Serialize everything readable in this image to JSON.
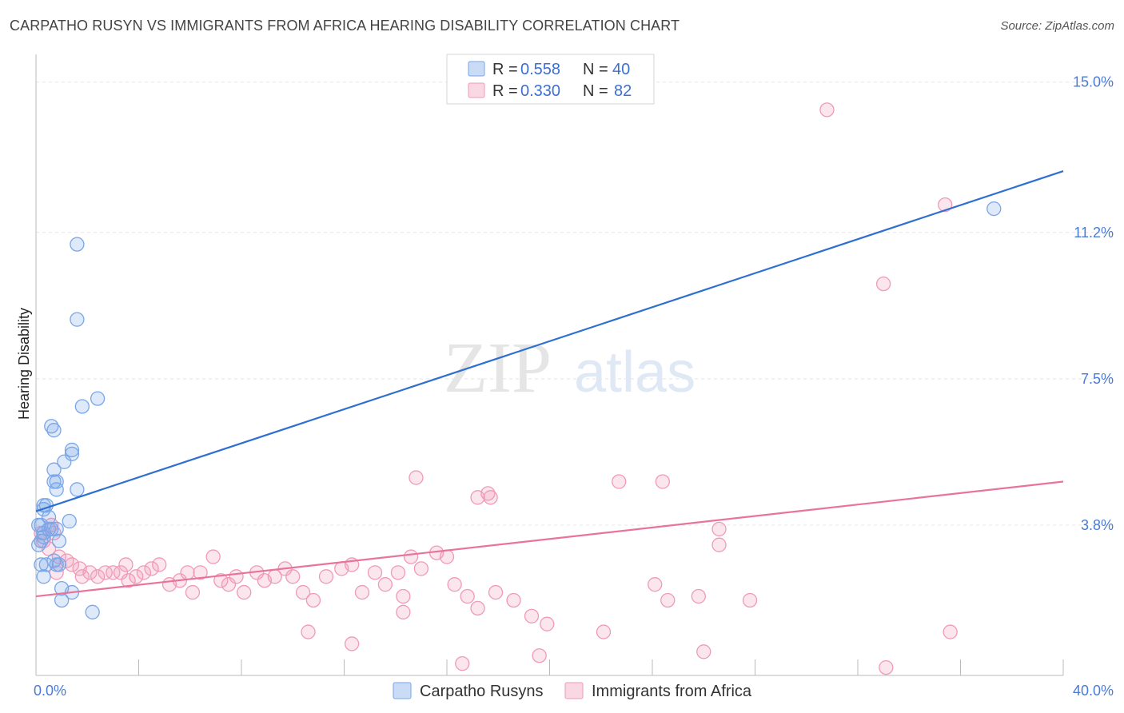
{
  "title": "CARPATHO RUSYN VS IMMIGRANTS FROM AFRICA HEARING DISABILITY CORRELATION CHART",
  "source": "Source: ZipAtlas.com",
  "watermark": {
    "zip": "ZIP",
    "atlas": "atlas"
  },
  "colors": {
    "blue": "#7aa6e8",
    "blue_fill": "rgba(122,166,232,0.25)",
    "blue_line": "#2f6fd0",
    "pink": "#f09ab8",
    "pink_fill": "rgba(240,154,184,0.25)",
    "pink_line": "#e8739c",
    "grid": "#e4e4e4",
    "axis": "#bbbbbb"
  },
  "legend": {
    "rows": [
      {
        "r_label": "R =",
        "r_value": "0.558",
        "n_label": "N =",
        "n_value": "40"
      },
      {
        "r_label": "R =",
        "r_value": "0.330",
        "n_label": "N =",
        "n_value": "82"
      }
    ]
  },
  "chart_data": {
    "type": "scatter",
    "title": "CARPATHO RUSYN VS IMMIGRANTS FROM AFRICA HEARING DISABILITY CORRELATION CHART",
    "xlabel": "",
    "ylabel": "Hearing Disability",
    "xlim": [
      0,
      40
    ],
    "ylim": [
      0,
      15.5
    ],
    "x_tick_labels": [
      "0.0%",
      "40.0%"
    ],
    "y_ticks": [
      3.8,
      7.5,
      11.2,
      15.0
    ],
    "y_tick_labels": [
      "3.8%",
      "7.5%",
      "11.2%",
      "15.0%"
    ],
    "grid": true,
    "legend_position": "top-center",
    "series": [
      {
        "name": "Carpatho Rusyns",
        "color": "#7aa6e8",
        "trend": {
          "x": [
            0,
            40
          ],
          "y": [
            4.15,
            12.75
          ]
        },
        "points": [
          [
            1.6,
            10.9
          ],
          [
            1.6,
            9.0
          ],
          [
            2.4,
            7.0
          ],
          [
            1.8,
            6.8
          ],
          [
            0.6,
            6.3
          ],
          [
            0.7,
            6.2
          ],
          [
            1.4,
            5.7
          ],
          [
            1.4,
            5.6
          ],
          [
            1.1,
            5.4
          ],
          [
            0.7,
            5.2
          ],
          [
            0.7,
            4.9
          ],
          [
            0.8,
            4.9
          ],
          [
            1.6,
            4.7
          ],
          [
            0.8,
            4.7
          ],
          [
            0.3,
            4.3
          ],
          [
            0.4,
            4.3
          ],
          [
            0.3,
            4.2
          ],
          [
            0.5,
            4.0
          ],
          [
            1.3,
            3.9
          ],
          [
            0.1,
            3.8
          ],
          [
            0.2,
            3.8
          ],
          [
            0.5,
            3.7
          ],
          [
            0.6,
            3.7
          ],
          [
            0.8,
            3.7
          ],
          [
            0.3,
            3.6
          ],
          [
            0.2,
            3.4
          ],
          [
            0.9,
            3.4
          ],
          [
            0.1,
            3.3
          ],
          [
            0.4,
            2.8
          ],
          [
            0.8,
            2.8
          ],
          [
            0.7,
            2.9
          ],
          [
            0.9,
            2.8
          ],
          [
            0.3,
            2.5
          ],
          [
            0.2,
            2.8
          ],
          [
            1.0,
            2.2
          ],
          [
            1.4,
            2.1
          ],
          [
            1.0,
            1.9
          ],
          [
            2.2,
            1.6
          ],
          [
            0.3,
            3.5
          ],
          [
            37.3,
            11.8
          ]
        ]
      },
      {
        "name": "Immigrants from Africa",
        "color": "#f09ab8",
        "trend": {
          "x": [
            0,
            40
          ],
          "y": [
            2.0,
            4.9
          ]
        },
        "points": [
          [
            30.8,
            14.3
          ],
          [
            35.4,
            11.9
          ],
          [
            33.0,
            9.9
          ],
          [
            14.8,
            5.0
          ],
          [
            22.7,
            4.9
          ],
          [
            24.4,
            4.9
          ],
          [
            17.2,
            4.5
          ],
          [
            17.6,
            4.6
          ],
          [
            17.7,
            4.5
          ],
          [
            0.2,
            3.6
          ],
          [
            0.6,
            3.8
          ],
          [
            0.3,
            3.4
          ],
          [
            0.5,
            3.2
          ],
          [
            0.7,
            3.6
          ],
          [
            0.9,
            3.0
          ],
          [
            1.2,
            2.9
          ],
          [
            1.4,
            2.8
          ],
          [
            0.8,
            2.6
          ],
          [
            1.7,
            2.7
          ],
          [
            1.8,
            2.5
          ],
          [
            2.1,
            2.6
          ],
          [
            2.4,
            2.5
          ],
          [
            2.7,
            2.6
          ],
          [
            3.0,
            2.6
          ],
          [
            3.3,
            2.6
          ],
          [
            3.5,
            2.8
          ],
          [
            3.6,
            2.4
          ],
          [
            3.9,
            2.5
          ],
          [
            4.2,
            2.6
          ],
          [
            4.5,
            2.7
          ],
          [
            4.8,
            2.8
          ],
          [
            5.2,
            2.3
          ],
          [
            5.6,
            2.4
          ],
          [
            5.9,
            2.6
          ],
          [
            6.1,
            2.1
          ],
          [
            6.4,
            2.6
          ],
          [
            6.9,
            3.0
          ],
          [
            7.2,
            2.4
          ],
          [
            7.5,
            2.3
          ],
          [
            7.8,
            2.5
          ],
          [
            8.1,
            2.1
          ],
          [
            8.6,
            2.6
          ],
          [
            8.9,
            2.4
          ],
          [
            9.3,
            2.5
          ],
          [
            9.7,
            2.7
          ],
          [
            10.0,
            2.5
          ],
          [
            10.4,
            2.1
          ],
          [
            10.8,
            1.9
          ],
          [
            11.3,
            2.5
          ],
          [
            11.9,
            2.7
          ],
          [
            12.3,
            2.8
          ],
          [
            12.7,
            2.1
          ],
          [
            13.2,
            2.6
          ],
          [
            13.6,
            2.3
          ],
          [
            14.1,
            2.6
          ],
          [
            14.3,
            2.0
          ],
          [
            14.6,
            3.0
          ],
          [
            15.0,
            2.7
          ],
          [
            15.6,
            3.1
          ],
          [
            16.0,
            3.0
          ],
          [
            16.3,
            2.3
          ],
          [
            16.8,
            2.0
          ],
          [
            17.2,
            1.7
          ],
          [
            17.9,
            2.1
          ],
          [
            18.6,
            1.9
          ],
          [
            19.3,
            1.5
          ],
          [
            19.9,
            1.3
          ],
          [
            22.1,
            1.1
          ],
          [
            24.1,
            2.3
          ],
          [
            24.6,
            1.9
          ],
          [
            25.8,
            2.0
          ],
          [
            26.6,
            3.7
          ],
          [
            26.6,
            3.3
          ],
          [
            27.8,
            1.9
          ],
          [
            12.3,
            0.8
          ],
          [
            10.6,
            1.1
          ],
          [
            14.3,
            1.6
          ],
          [
            19.6,
            0.5
          ],
          [
            26.0,
            0.6
          ],
          [
            33.1,
            0.2
          ],
          [
            35.6,
            1.1
          ],
          [
            16.6,
            0.3
          ]
        ]
      }
    ]
  },
  "bottom_legend": [
    {
      "label": "Carpatho Rusyns"
    },
    {
      "label": "Immigrants from Africa"
    }
  ]
}
